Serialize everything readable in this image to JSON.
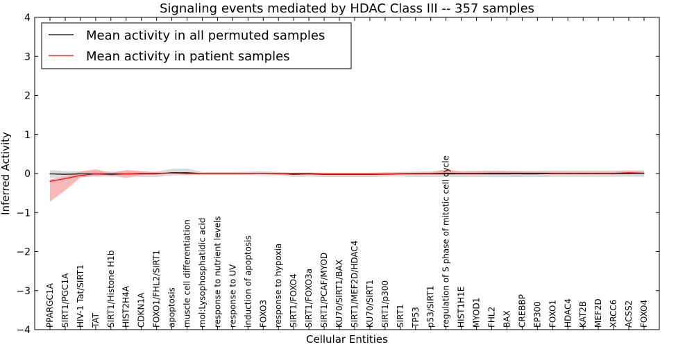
{
  "chart_data": {
    "type": "line",
    "title": "Signaling events mediated by HDAC Class III -- 357 samples",
    "xlabel": "Cellular Entities",
    "ylabel": "Inferred Activity",
    "ylim": [
      -4,
      4
    ],
    "yticks": [
      4,
      3,
      2,
      1,
      0,
      -1,
      -2,
      -3,
      -4
    ],
    "ytick_labels": [
      "4",
      "3",
      "2",
      "1",
      "0",
      "−1",
      "−2",
      "−3",
      "−4"
    ],
    "grid": false,
    "legend_position": "top-left",
    "categories": [
      "PPARGC1A",
      "SIRT1/PGC1A",
      "HIV-1 Tat/SIRT1",
      "TAT",
      "SIRT1/Histone H1b",
      "HIST2H4A",
      "CDKN1A",
      "FOXO1/FHL2/SIRT1",
      "apoptosis",
      "muscle cell differentiation",
      "mol:Lysophosphatidic acid",
      "response to nutrient levels",
      "response to UV",
      "induction of apoptosis",
      "FOXO3",
      "response to hypoxia",
      "SIRT1/FOXO4",
      "SIRT1/FOXO3a",
      "SIRT1/PCAF/MYOD",
      "KU70/SIRT1/BAX",
      "SIRT1/MEF2D/HDAC4",
      "KU70/SIRT1",
      "SIRT1/p300",
      "SIRT1",
      "TP53",
      "p53/SIRT1",
      "regulation of S phase of mitotic cell cycle",
      "HIST1H1E",
      "MYOD1",
      "FHL2",
      "BAX",
      "CREBBP",
      "EP300",
      "FOXO1",
      "HDAC4",
      "KAT2B",
      "MEF2D",
      "XRCC6",
      "ACSS2",
      "FOXO4"
    ],
    "series": [
      {
        "name": "Mean activity in all permuted samples",
        "color": "#000000",
        "band_color": "#bbbbbb",
        "values": [
          -0.01,
          -0.02,
          -0.01,
          -0.01,
          -0.01,
          -0.01,
          -0.01,
          -0.01,
          0.02,
          0.02,
          0,
          0,
          0,
          0,
          0.005,
          0,
          -0.02,
          -0.01,
          -0.02,
          -0.02,
          -0.02,
          -0.02,
          -0.015,
          -0.01,
          -0.01,
          -0.01,
          -0.01,
          -0.01,
          -0.01,
          -0.01,
          -0.01,
          -0.01,
          -0.01,
          -0.005,
          -0.005,
          -0.005,
          -0.005,
          -0.005,
          0,
          0
        ],
        "lower": [
          -0.1,
          -0.09,
          -0.08,
          -0.07,
          -0.07,
          -0.07,
          -0.08,
          -0.08,
          -0.07,
          -0.06,
          -0.04,
          -0.04,
          -0.04,
          -0.04,
          -0.05,
          -0.05,
          -0.07,
          -0.07,
          -0.07,
          -0.07,
          -0.07,
          -0.07,
          -0.07,
          -0.07,
          -0.08,
          -0.08,
          -0.08,
          -0.08,
          -0.08,
          -0.08,
          -0.08,
          -0.08,
          -0.08,
          -0.08,
          -0.08,
          -0.08,
          -0.08,
          -0.08,
          -0.08,
          -0.08
        ],
        "upper": [
          0.1,
          0.08,
          0.07,
          0.07,
          0.06,
          0.06,
          0.06,
          0.06,
          0.1,
          0.11,
          0.04,
          0.04,
          0.04,
          0.05,
          0.05,
          0.04,
          0.04,
          0.04,
          0.04,
          0.04,
          0.04,
          0.04,
          0.05,
          0.05,
          0.06,
          0.07,
          0.08,
          0.08,
          0.08,
          0.08,
          0.08,
          0.08,
          0.08,
          0.08,
          0.08,
          0.08,
          0.08,
          0.08,
          0.08,
          0.08
        ]
      },
      {
        "name": "Mean activity in patient samples",
        "color": "#ff0000",
        "band_color": "#f4a0a0",
        "values": [
          -0.2,
          -0.13,
          -0.05,
          -0.01,
          -0.03,
          -0.01,
          0,
          0,
          0.01,
          0,
          0,
          0,
          0,
          0,
          0.005,
          -0.005,
          0,
          0,
          -0.01,
          -0.01,
          -0.01,
          -0.01,
          -0.01,
          -0.005,
          0,
          0,
          0.01,
          0.005,
          0.005,
          0.01,
          0.01,
          0.01,
          0.01,
          0.005,
          0.005,
          0.005,
          0.005,
          0.005,
          0.02,
          0.01
        ],
        "lower": [
          -0.52,
          -0.3,
          -0.05,
          -0.05,
          -0.02,
          -0.1,
          -0.04,
          -0.02,
          -0.01,
          -0.01,
          -0.01,
          -0.01,
          -0.01,
          -0.01,
          -0.01,
          -0.02,
          -0.02,
          -0.02,
          -0.03,
          -0.03,
          -0.03,
          -0.03,
          -0.03,
          -0.02,
          -0.02,
          -0.02,
          -0.03,
          -0.02,
          -0.02,
          -0.02,
          -0.02,
          -0.02,
          -0.02,
          -0.02,
          -0.02,
          -0.02,
          -0.02,
          -0.02,
          -0.02,
          -0.02
        ],
        "upper": [
          0.05,
          0.05,
          0.1,
          0.12,
          0.05,
          0.1,
          0.06,
          0.03,
          0.03,
          0.02,
          0.02,
          0.02,
          0.02,
          0.02,
          0.02,
          0.01,
          0.02,
          0.02,
          0.01,
          0.01,
          0.01,
          0.01,
          0.01,
          0.02,
          0.02,
          0.03,
          0.1,
          0.04,
          0.05,
          0.06,
          0.05,
          0.04,
          0.04,
          0.04,
          0.04,
          0.04,
          0.04,
          0.04,
          0.05,
          0.04
        ]
      }
    ]
  }
}
